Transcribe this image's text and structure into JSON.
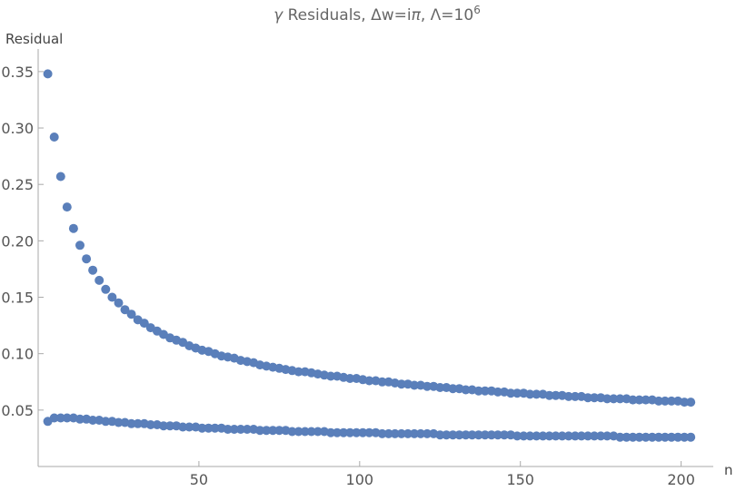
{
  "chart_data": {
    "type": "scatter",
    "title": {
      "prefix": "γ",
      "text": " Residuals, Δw=i",
      "pi": "π",
      "mid": ", Λ=10",
      "sup": "6"
    },
    "xlabel": "n",
    "ylabel": "Residual",
    "xlim": [
      0,
      210
    ],
    "ylim": [
      0,
      0.37
    ],
    "xticks": [
      50,
      100,
      150,
      200
    ],
    "yticks": [
      0.05,
      0.1,
      0.15,
      0.2,
      0.25,
      0.3,
      0.35
    ],
    "ytick_labels": [
      "0.05",
      "0.10",
      "0.15",
      "0.20",
      "0.25",
      "0.30",
      "0.35"
    ],
    "grid": false,
    "marker_color": "#5a7fba",
    "series": [
      {
        "x": [
          3,
          5,
          7,
          9,
          11,
          13,
          15,
          17,
          19,
          21,
          23,
          25,
          27,
          29,
          31,
          33,
          35,
          37,
          39,
          41,
          43,
          45,
          47,
          49,
          51,
          53,
          55,
          57,
          59,
          61,
          63,
          65,
          67,
          69,
          71,
          73,
          75,
          77,
          79,
          81,
          83,
          85,
          87,
          89,
          91,
          93,
          95,
          97,
          99,
          101,
          103,
          105,
          107,
          109,
          111,
          113,
          115,
          117,
          119,
          121,
          123,
          125,
          127,
          129,
          131,
          133,
          135,
          137,
          139,
          141,
          143,
          145,
          147,
          149,
          151,
          153,
          155,
          157,
          159,
          161,
          163,
          165,
          167,
          169,
          171,
          173,
          175,
          177,
          179,
          181,
          183,
          185,
          187,
          189,
          191,
          193,
          195,
          197,
          199,
          201,
          203
        ],
        "y": [
          0.348,
          0.292,
          0.257,
          0.23,
          0.211,
          0.196,
          0.184,
          0.174,
          0.165,
          0.157,
          0.15,
          0.145,
          0.139,
          0.135,
          0.13,
          0.127,
          0.123,
          0.12,
          0.117,
          0.114,
          0.112,
          0.11,
          0.107,
          0.105,
          0.103,
          0.102,
          0.1,
          0.098,
          0.097,
          0.096,
          0.094,
          0.093,
          0.092,
          0.09,
          0.089,
          0.088,
          0.087,
          0.086,
          0.085,
          0.084,
          0.084,
          0.083,
          0.082,
          0.081,
          0.08,
          0.08,
          0.079,
          0.078,
          0.078,
          0.077,
          0.076,
          0.076,
          0.075,
          0.075,
          0.074,
          0.073,
          0.073,
          0.072,
          0.072,
          0.071,
          0.071,
          0.07,
          0.07,
          0.069,
          0.069,
          0.068,
          0.068,
          0.067,
          0.067,
          0.067,
          0.066,
          0.066,
          0.065,
          0.065,
          0.065,
          0.064,
          0.064,
          0.064,
          0.063,
          0.063,
          0.063,
          0.062,
          0.062,
          0.062,
          0.061,
          0.061,
          0.061,
          0.06,
          0.06,
          0.06,
          0.06,
          0.059,
          0.059,
          0.059,
          0.059,
          0.058,
          0.058,
          0.058,
          0.058,
          0.057,
          0.057
        ]
      },
      {
        "x": [
          3,
          5,
          7,
          9,
          11,
          13,
          15,
          17,
          19,
          21,
          23,
          25,
          27,
          29,
          31,
          33,
          35,
          37,
          39,
          41,
          43,
          45,
          47,
          49,
          51,
          53,
          55,
          57,
          59,
          61,
          63,
          65,
          67,
          69,
          71,
          73,
          75,
          77,
          79,
          81,
          83,
          85,
          87,
          89,
          91,
          93,
          95,
          97,
          99,
          101,
          103,
          105,
          107,
          109,
          111,
          113,
          115,
          117,
          119,
          121,
          123,
          125,
          127,
          129,
          131,
          133,
          135,
          137,
          139,
          141,
          143,
          145,
          147,
          149,
          151,
          153,
          155,
          157,
          159,
          161,
          163,
          165,
          167,
          169,
          171,
          173,
          175,
          177,
          179,
          181,
          183,
          185,
          187,
          189,
          191,
          193,
          195,
          197,
          199,
          201,
          203
        ],
        "y": [
          0.04,
          0.043,
          0.043,
          0.043,
          0.043,
          0.042,
          0.042,
          0.041,
          0.041,
          0.04,
          0.04,
          0.039,
          0.039,
          0.038,
          0.038,
          0.038,
          0.037,
          0.037,
          0.036,
          0.036,
          0.036,
          0.035,
          0.035,
          0.035,
          0.034,
          0.034,
          0.034,
          0.034,
          0.033,
          0.033,
          0.033,
          0.033,
          0.033,
          0.032,
          0.032,
          0.032,
          0.032,
          0.032,
          0.031,
          0.031,
          0.031,
          0.031,
          0.031,
          0.031,
          0.03,
          0.03,
          0.03,
          0.03,
          0.03,
          0.03,
          0.03,
          0.03,
          0.029,
          0.029,
          0.029,
          0.029,
          0.029,
          0.029,
          0.029,
          0.029,
          0.029,
          0.028,
          0.028,
          0.028,
          0.028,
          0.028,
          0.028,
          0.028,
          0.028,
          0.028,
          0.028,
          0.028,
          0.028,
          0.027,
          0.027,
          0.027,
          0.027,
          0.027,
          0.027,
          0.027,
          0.027,
          0.027,
          0.027,
          0.027,
          0.027,
          0.027,
          0.027,
          0.027,
          0.027,
          0.026,
          0.026,
          0.026,
          0.026,
          0.026,
          0.026,
          0.026,
          0.026,
          0.026,
          0.026,
          0.026,
          0.026
        ]
      }
    ]
  }
}
